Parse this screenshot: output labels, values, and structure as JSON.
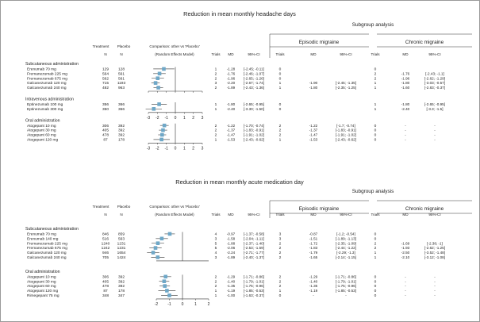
{
  "panels": [
    {
      "title": "Reduction in mean monthly headache days",
      "subgroup_title": "Subgroup analysis",
      "subgroups": [
        "Episodic migraine",
        "Chronic migraine"
      ],
      "headers": {
        "treatment": "Treatment",
        "placebo": "Placebo",
        "n": "N",
        "comparison": "Comparison: other vs 'Placebo'",
        "model": "(Random Effects Model)",
        "trials": "Trials",
        "md": "MD",
        "ci": "95%-CI"
      },
      "axis": {
        "min": -3,
        "max": 3,
        "ticks": [
          "-3",
          "-2",
          "-1",
          "0",
          "1",
          "2",
          "3"
        ]
      },
      "groups": [
        {
          "name": "Subcutaneous administration",
          "rows": [
            {
              "label": "Erenumab 70 mg",
              "tn": "129",
              "pn": "128",
              "trials": "1",
              "md": "-1.28",
              "ci": "[-2.45; -0.11]",
              "md_value": -1.28,
              "lo": -2.45,
              "hi": -0.11,
              "epi_trials": "0",
              "epi_md": "",
              "epi_ci": "",
              "chr_trials": "0",
              "chr_md": "",
              "chr_ci": ""
            },
            {
              "label": "Fremanezumab 225 mg",
              "tn": "564",
              "pn": "561",
              "trials": "2",
              "md": "-1.76",
              "ci": "[-2.46; -1.07]",
              "md_value": -1.76,
              "lo": -2.46,
              "hi": -1.07,
              "epi_trials": "0",
              "epi_md": "",
              "epi_ci": "",
              "chr_trials": "2",
              "chr_md": "-1.76",
              "chr_ci": "[-2.43; -1.1]"
            },
            {
              "label": "Fremanezumab 675 mg",
              "tn": "562",
              "pn": "561",
              "trials": "2",
              "md": "-1.96",
              "ci": "[-2.65; -1.26]",
              "md_value": -1.96,
              "lo": -2.65,
              "hi": -1.26,
              "epi_trials": "0",
              "epi_md": "",
              "epi_ci": "",
              "chr_trials": "2",
              "chr_md": "-1.96",
              "chr_ci": "[-2.62; -1.29]"
            },
            {
              "label": "Galcanezumab 120 mg",
              "tn": "715",
              "pn": "1193",
              "trials": "3",
              "md": "-2.20",
              "ci": "[-2.67; -1.74]",
              "md_value": -2.2,
              "lo": -2.67,
              "hi": -1.74,
              "epi_trials": "1",
              "epi_md": "-1.90",
              "epi_ci": "[-2.45; -1.35]",
              "chr_trials": "1",
              "chr_md": "-1.80",
              "chr_ci": "[-3.03; -0.57]"
            },
            {
              "label": "Galcanezumab 240 mg",
              "tn": "482",
              "pn": "963",
              "trials": "2",
              "md": "-1.89",
              "ci": "[-2.43; -1.36]",
              "md_value": -1.89,
              "lo": -2.43,
              "hi": -1.36,
              "epi_trials": "1",
              "epi_md": "-1.80",
              "epi_ci": "[-2.35; -1.25]",
              "chr_trials": "1",
              "chr_md": "-1.60",
              "chr_ci": "[-2.83; -0.37]"
            }
          ]
        },
        {
          "name": "Intravenous administration",
          "rows": [
            {
              "label": "Eptinezumab 100 mg",
              "tn": "356",
              "pn": "366",
              "trials": "1",
              "md": "-1.80",
              "ci": "[-2.65; -0.95]",
              "md_value": -1.8,
              "lo": -2.65,
              "hi": -0.95,
              "epi_trials": "0",
              "epi_md": "",
              "epi_ci": "",
              "chr_trials": "1",
              "chr_md": "-1.80",
              "chr_ci": "[-2.65; -0.95]"
            },
            {
              "label": "Eptinezumab 300 mg",
              "tn": "350",
              "pn": "366",
              "trials": "1",
              "md": "-2.40",
              "ci": "[-3.30; -1.50]",
              "md_value": -2.4,
              "lo": -3.3,
              "hi": -1.5,
              "epi_trials": "0",
              "epi_md": "",
              "epi_ci": "",
              "chr_trials": "1",
              "chr_md": "-2.40",
              "chr_ci": "[-3.3; -1.5]"
            }
          ]
        },
        {
          "name": "Oral administration",
          "rows": [
            {
              "label": "Atogepant 10 mg",
              "tn": "306",
              "pn": "392",
              "trials": "2",
              "md": "-1.22",
              "ci": "[-1.70; -0.74]",
              "md_value": -1.22,
              "lo": -1.7,
              "hi": -0.74,
              "epi_trials": "2",
              "epi_md": "-1.22",
              "epi_ci": "[-1.7; -0.74]",
              "chr_trials": "0",
              "chr_md": "-",
              "chr_ci": "-"
            },
            {
              "label": "Atogepant 30 mg",
              "tn": "405",
              "pn": "392",
              "trials": "2",
              "md": "-1.37",
              "ci": "[-1.83; -0.91]",
              "md_value": -1.37,
              "lo": -1.83,
              "hi": -0.91,
              "epi_trials": "2",
              "epi_md": "-1.37",
              "epi_ci": "[-1.83; -0.91]",
              "chr_trials": "0",
              "chr_md": "-",
              "chr_ci": "-"
            },
            {
              "label": "Atogepant 60 mg",
              "tn": "478",
              "pn": "392",
              "trials": "2",
              "md": "-1.47",
              "ci": "[-1.91; -1.02]",
              "md_value": -1.47,
              "lo": -1.91,
              "hi": -1.02,
              "epi_trials": "2",
              "epi_md": "-1.47",
              "epi_ci": "[-1.91; -1.02]",
              "chr_trials": "0",
              "chr_md": "-",
              "chr_ci": "-"
            },
            {
              "label": "Atogepant 120 mg",
              "tn": "87",
              "pn": "178",
              "trials": "1",
              "md": "-1.53",
              "ci": "[-2.43; -0.62]",
              "md_value": -1.53,
              "lo": -2.43,
              "hi": -0.62,
              "epi_trials": "1",
              "epi_md": "-1.53",
              "epi_ci": "[-2.43; -0.62]",
              "chr_trials": "0",
              "chr_md": "-",
              "chr_ci": "-"
            }
          ]
        }
      ]
    },
    {
      "title": "Reduction in mean monthly acute medication day",
      "subgroup_title": "Subgroup analysis",
      "subgroups": [
        "Episodic migraine",
        "Chronic migraine"
      ],
      "headers": {
        "treatment": "Treatment",
        "placebo": "Placebo",
        "n": "N",
        "comparison": "Comparison: other vs 'Placebo'",
        "model": "(Random Effects Model)",
        "trials": "Trials",
        "md": "MD",
        "ci": "95%-CI"
      },
      "axis": {
        "min": -2,
        "max": 2,
        "ticks": [
          "-2",
          "-1",
          "0",
          "1",
          "2"
        ]
      },
      "groups": [
        {
          "name": "Subcutaneous administration",
          "rows": [
            {
              "label": "Erenumab 70 mg",
              "tn": "846",
              "pn": "859",
              "trials": "4",
              "md": "-0.97",
              "ci": "[-1.37; -0.58]",
              "md_value": -0.97,
              "lo": -1.37,
              "hi": -0.58,
              "epi_trials": "3",
              "epi_md": "-0.87",
              "epi_ci": "[-1.2; -0.54]",
              "chr_trials": "0",
              "chr_md": "",
              "chr_ci": ""
            },
            {
              "label": "Erenumab 140 mg",
              "tn": "516",
              "pn": "563",
              "trials": "3",
              "md": "-1.58",
              "ci": "[-2.04; -1.11]",
              "md_value": -1.58,
              "lo": -2.04,
              "hi": -1.11,
              "epi_trials": "3",
              "epi_md": "-1.51",
              "epi_ci": "[-1.89; -1.13]",
              "chr_trials": "0",
              "chr_md": "",
              "chr_ci": ""
            },
            {
              "label": "Fremanezumab 225 mg",
              "tn": "1240",
              "pn": "1231",
              "trials": "5",
              "md": "-1.88",
              "ci": "[-2.37; -1.40]",
              "md_value": -1.88,
              "lo": -2.37,
              "hi": -1.4,
              "epi_trials": "2",
              "epi_md": "-1.72",
              "epi_ci": "[-2.35; -1.09]",
              "chr_trials": "2",
              "chr_md": "-1.69",
              "chr_ci": "[-2.38; -1]"
            },
            {
              "label": "Fremanezumab 675 mg",
              "tn": "1242",
              "pn": "1231",
              "trials": "5",
              "md": "-2.06",
              "ci": "[-2.53; -1.59]",
              "md_value": -2.06,
              "lo": -2.53,
              "hi": -1.59,
              "epi_trials": "2",
              "epi_md": "-1.83",
              "epi_ci": "[-2.44; -1.22]",
              "chr_trials": "2",
              "chr_md": "-1.93",
              "chr_ci": "[-2.62; -1.25]"
            },
            {
              "label": "Galcanezumab 120 mg",
              "tn": "946",
              "pn": "1654",
              "trials": "4",
              "md": "-2.24",
              "ci": "[-2.71; -1.77]",
              "md_value": -2.24,
              "lo": -2.71,
              "hi": -1.77,
              "epi_trials": "2",
              "epi_md": "-1.79",
              "epi_ci": "[-2.29; -1.3]",
              "chr_trials": "1",
              "chr_md": "-2.50",
              "chr_ci": "[-3.52; -1.48]"
            },
            {
              "label": "Galcanezumab 240 mg",
              "tn": "705",
              "pn": "1424",
              "trials": "3",
              "md": "-1.89",
              "ci": "[-2.40; -1.37]",
              "md_value": -1.89,
              "lo": -2.4,
              "hi": -1.37,
              "epi_trials": "2",
              "epi_md": "-1.65",
              "epi_ci": "[-2.14; -1.15]",
              "chr_trials": "1",
              "chr_md": "-2.10",
              "chr_ci": "[-3.12; -1.08]"
            }
          ]
        },
        {
          "name": "Oral administration",
          "rows": [
            {
              "label": "Atogepant 10 mg",
              "tn": "306",
              "pn": "392",
              "trials": "2",
              "md": "-1.29",
              "ci": "[-1.71; -0.86]",
              "md_value": -1.29,
              "lo": -1.71,
              "hi": -0.86,
              "epi_trials": "2",
              "epi_md": "-1.29",
              "epi_ci": "[-1.71; -0.86]",
              "chr_trials": "0",
              "chr_md": "-",
              "chr_ci": "-"
            },
            {
              "label": "Atogepant 30 mg",
              "tn": "405",
              "pn": "392",
              "trials": "2",
              "md": "-1.40",
              "ci": "[-1.79; -1.01]",
              "md_value": -1.4,
              "lo": -1.79,
              "hi": -1.01,
              "epi_trials": "2",
              "epi_md": "-1.40",
              "epi_ci": "[-1.79; -1.01]",
              "chr_trials": "0",
              "chr_md": "-",
              "chr_ci": "-"
            },
            {
              "label": "Atogepant 60 mg",
              "tn": "478",
              "pn": "392",
              "trials": "2",
              "md": "-1.35",
              "ci": "[-1.75; -0.96]",
              "md_value": -1.35,
              "lo": -1.75,
              "hi": -0.96,
              "epi_trials": "2",
              "epi_md": "-1.35",
              "epi_ci": "[-1.75; -0.96]",
              "chr_trials": "0",
              "chr_md": "-",
              "chr_ci": "-"
            },
            {
              "label": "Atogepant 120 mg",
              "tn": "87",
              "pn": "178",
              "trials": "1",
              "md": "-1.19",
              "ci": "[-1.85; -0.53]",
              "md_value": -1.19,
              "lo": -1.85,
              "hi": -0.53,
              "epi_trials": "1",
              "epi_md": "-1.19",
              "epi_ci": "[-1.85; -0.53]",
              "chr_trials": "0",
              "chr_md": "-",
              "chr_ci": "-"
            },
            {
              "label": "Rimegepant 75 mg",
              "tn": "348",
              "pn": "347",
              "trials": "1",
              "md": "-1.00",
              "ci": "[-1.63; -0.37]",
              "md_value": -1.0,
              "lo": -1.63,
              "hi": -0.37,
              "epi_trials": "0",
              "epi_md": "-",
              "epi_ci": "-",
              "chr_trials": "0",
              "chr_md": "-",
              "chr_ci": "-"
            }
          ]
        }
      ]
    }
  ],
  "colors": {
    "marker": "#6fa8c8",
    "line": "#333333",
    "text": "#222222"
  }
}
